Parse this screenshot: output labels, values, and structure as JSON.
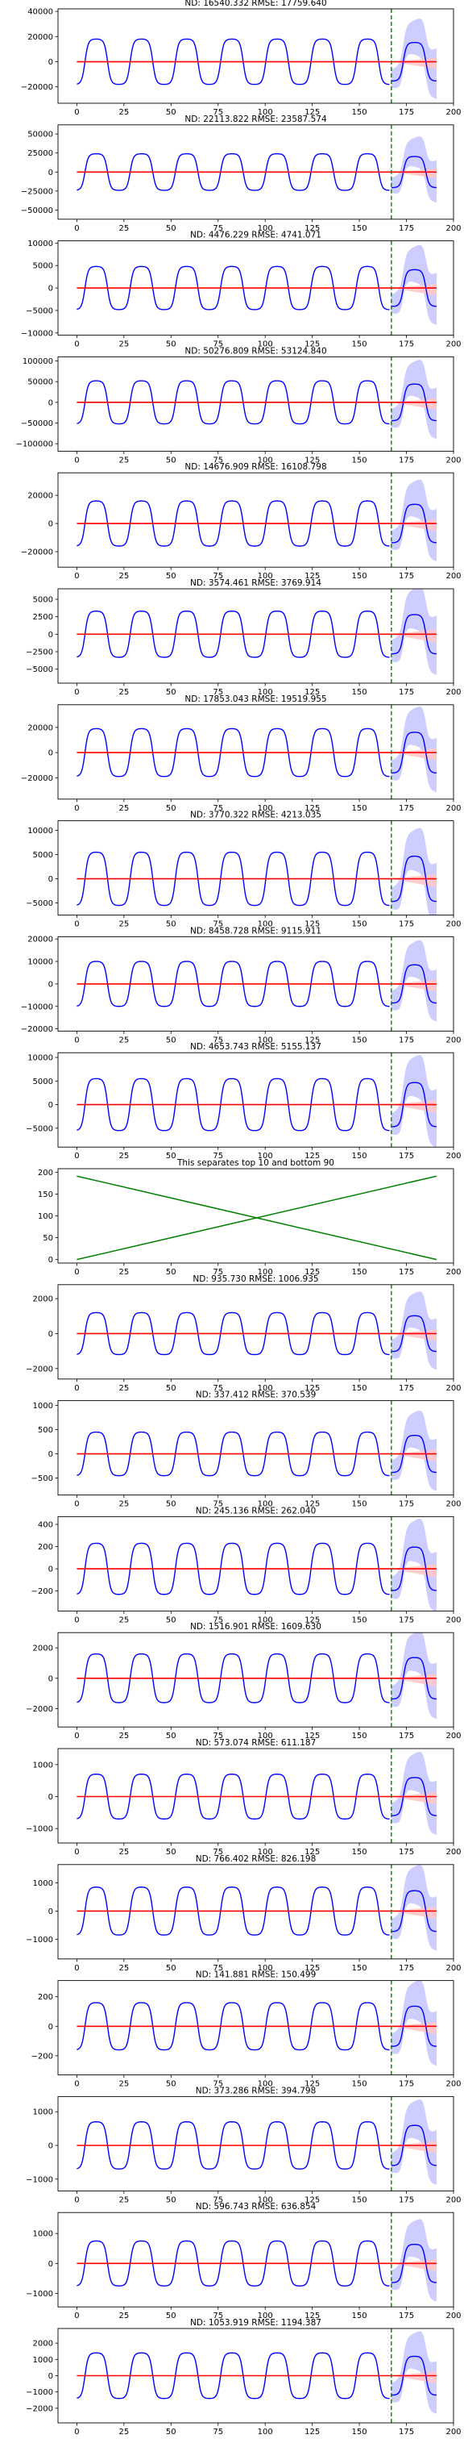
{
  "figure": {
    "colors": {
      "blue_line": "#0000ff",
      "blue_band": "#c8c8ff",
      "red_line": "#ff0000",
      "red_band": "#ffc8c8",
      "green_line": "#008000",
      "axes": "#000000"
    }
  },
  "chart_data": [
    {
      "type": "line",
      "title": "ND:  16540.332 RMSE:  17759.640",
      "y_ticks": [
        -20000,
        0,
        20000,
        40000
      ],
      "ylim": [
        -33000,
        42000
      ],
      "xlim": [
        -10,
        200
      ],
      "x_ticks": [
        0,
        25,
        50,
        75,
        100,
        125,
        150,
        175,
        200
      ],
      "amplitude": 18000,
      "forecast_band": 26000,
      "separator_x": 167
    },
    {
      "type": "line",
      "title": "ND:  22113.822 RMSE:  23587.574",
      "y_ticks": [
        -50000,
        -25000,
        0,
        25000,
        50000
      ],
      "ylim": [
        -62000,
        62000
      ],
      "xlim": [
        -10,
        200
      ],
      "x_ticks": [
        0,
        25,
        50,
        75,
        100,
        125,
        150,
        175,
        200
      ],
      "amplitude": 24000,
      "forecast_band": 36000,
      "separator_x": 167
    },
    {
      "type": "line",
      "title": "ND:  4476.229 RMSE:  4741.071",
      "y_ticks": [
        -10000,
        -5000,
        0,
        5000,
        10000
      ],
      "ylim": [
        -10500,
        10500
      ],
      "xlim": [
        -10,
        200
      ],
      "x_ticks": [
        0,
        25,
        50,
        75,
        100,
        125,
        150,
        175,
        200
      ],
      "amplitude": 4800,
      "forecast_band": 7500,
      "separator_x": 167
    },
    {
      "type": "line",
      "title": "ND:  50276.809 RMSE:  53124.840",
      "y_ticks": [
        -100000,
        -50000,
        0,
        50000,
        100000
      ],
      "ylim": [
        -118000,
        110000
      ],
      "xlim": [
        -10,
        200
      ],
      "x_ticks": [
        0,
        25,
        50,
        75,
        100,
        125,
        150,
        175,
        200
      ],
      "amplitude": 52000,
      "forecast_band": 80000,
      "separator_x": 167
    },
    {
      "type": "line",
      "title": "ND:  14676.909 RMSE:  16108.798",
      "y_ticks": [
        -20000,
        0,
        20000
      ],
      "ylim": [
        -31000,
        36000
      ],
      "xlim": [
        -10,
        200
      ],
      "x_ticks": [
        0,
        25,
        50,
        75,
        100,
        125,
        150,
        175,
        200
      ],
      "amplitude": 16000,
      "forecast_band": 24000,
      "separator_x": 167
    },
    {
      "type": "line",
      "title": "ND:  3574.461 RMSE:  3769.914",
      "y_ticks": [
        -5000,
        -2500,
        0,
        2500,
        5000
      ],
      "ylim": [
        -7000,
        6500
      ],
      "xlim": [
        -10,
        200
      ],
      "x_ticks": [
        0,
        25,
        50,
        75,
        100,
        125,
        150,
        175,
        200
      ],
      "amplitude": 3300,
      "forecast_band": 5500,
      "separator_x": 167
    },
    {
      "type": "line",
      "title": "ND:  17853.043 RMSE:  19519.955",
      "y_ticks": [
        -20000,
        0,
        20000
      ],
      "ylim": [
        -37000,
        38000
      ],
      "xlim": [
        -10,
        200
      ],
      "x_ticks": [
        0,
        25,
        50,
        75,
        100,
        125,
        150,
        175,
        200
      ],
      "amplitude": 19000,
      "forecast_band": 28000,
      "separator_x": 167
    },
    {
      "type": "line",
      "title": "ND:  3770.322 RMSE:  4213.035",
      "y_ticks": [
        -5000,
        0,
        5000,
        10000
      ],
      "ylim": [
        -7500,
        12000
      ],
      "xlim": [
        -10,
        200
      ],
      "x_ticks": [
        0,
        25,
        50,
        75,
        100,
        125,
        150,
        175,
        200
      ],
      "amplitude": 5500,
      "forecast_band": 8000,
      "separator_x": 167
    },
    {
      "type": "line",
      "title": "ND:  8458.728 RMSE:  9115.911",
      "y_ticks": [
        -20000,
        -10000,
        0,
        10000,
        20000
      ],
      "ylim": [
        -21000,
        21000
      ],
      "xlim": [
        -10,
        200
      ],
      "x_ticks": [
        0,
        25,
        50,
        75,
        100,
        125,
        150,
        175,
        200
      ],
      "amplitude": 10000,
      "forecast_band": 15000,
      "separator_x": 167
    },
    {
      "type": "line",
      "title": "ND:  4653.743 RMSE:  5155.137",
      "y_ticks": [
        -5000,
        0,
        5000,
        10000
      ],
      "ylim": [
        -9000,
        11000
      ],
      "xlim": [
        -10,
        200
      ],
      "x_ticks": [
        0,
        25,
        50,
        75,
        100,
        125,
        150,
        175,
        200
      ],
      "amplitude": 5500,
      "forecast_band": 8000,
      "separator_x": 167
    },
    {
      "type": "line",
      "kind": "separator",
      "title": "This separates top 10 and bottom 90",
      "y_ticks": [
        0,
        50,
        100,
        150,
        200
      ],
      "ylim": [
        -8,
        208
      ],
      "xlim": [
        -10,
        200
      ],
      "x_ticks": [
        0,
        25,
        50,
        75,
        100,
        125,
        150,
        175,
        200
      ],
      "series": [
        {
          "x": [
            0,
            191
          ],
          "y": [
            191,
            0
          ]
        },
        {
          "x": [
            0,
            191
          ],
          "y": [
            0,
            191
          ]
        }
      ]
    },
    {
      "type": "line",
      "title": "ND:  935.730 RMSE:  1006.935",
      "y_ticks": [
        -2000,
        0,
        2000
      ],
      "ylim": [
        -2600,
        2800
      ],
      "xlim": [
        -10,
        200
      ],
      "x_ticks": [
        0,
        25,
        50,
        75,
        100,
        125,
        150,
        175,
        200
      ],
      "amplitude": 1200,
      "forecast_band": 1900,
      "separator_x": 167
    },
    {
      "type": "line",
      "title": "ND:  337.412 RMSE:  370.539",
      "y_ticks": [
        -500,
        0,
        500,
        1000
      ],
      "ylim": [
        -850,
        1100
      ],
      "xlim": [
        -10,
        200
      ],
      "x_ticks": [
        0,
        25,
        50,
        75,
        100,
        125,
        150,
        175,
        200
      ],
      "amplitude": 450,
      "forecast_band": 700,
      "separator_x": 167
    },
    {
      "type": "line",
      "title": "ND:  245.136 RMSE:  262.040",
      "y_ticks": [
        -200,
        0,
        200,
        400
      ],
      "ylim": [
        -380,
        470
      ],
      "xlim": [
        -10,
        200
      ],
      "x_ticks": [
        0,
        25,
        50,
        75,
        100,
        125,
        150,
        175,
        200
      ],
      "amplitude": 230,
      "forecast_band": 350,
      "separator_x": 167
    },
    {
      "type": "line",
      "title": "ND:  1516.901 RMSE:  1609.630",
      "y_ticks": [
        -2000,
        0,
        2000
      ],
      "ylim": [
        -3200,
        3000
      ],
      "xlim": [
        -10,
        200
      ],
      "x_ticks": [
        0,
        25,
        50,
        75,
        100,
        125,
        150,
        175,
        200
      ],
      "amplitude": 1600,
      "forecast_band": 2400,
      "separator_x": 167
    },
    {
      "type": "line",
      "title": "ND:  573.074 RMSE:  611.187",
      "y_ticks": [
        -1000,
        0,
        1000
      ],
      "ylim": [
        -1450,
        1500
      ],
      "xlim": [
        -10,
        200
      ],
      "x_ticks": [
        0,
        25,
        50,
        75,
        100,
        125,
        150,
        175,
        200
      ],
      "amplitude": 700,
      "forecast_band": 1100,
      "separator_x": 167
    },
    {
      "type": "line",
      "title": "ND:  766.402 RMSE:  826.198",
      "y_ticks": [
        -1000,
        0,
        1000
      ],
      "ylim": [
        -1700,
        1650
      ],
      "xlim": [
        -10,
        200
      ],
      "x_ticks": [
        0,
        25,
        50,
        75,
        100,
        125,
        150,
        175,
        200
      ],
      "amplitude": 850,
      "forecast_band": 1250,
      "separator_x": 167
    },
    {
      "type": "line",
      "title": "ND:  141.881 RMSE:  150.499",
      "y_ticks": [
        -200,
        0,
        200
      ],
      "ylim": [
        -330,
        310
      ],
      "xlim": [
        -10,
        200
      ],
      "x_ticks": [
        0,
        25,
        50,
        75,
        100,
        125,
        150,
        175,
        200
      ],
      "amplitude": 160,
      "forecast_band": 240,
      "separator_x": 167
    },
    {
      "type": "line",
      "title": "ND:  373.286 RMSE:  394.798",
      "y_ticks": [
        -1000,
        0,
        1000
      ],
      "ylim": [
        -1350,
        1450
      ],
      "xlim": [
        -10,
        200
      ],
      "x_ticks": [
        0,
        25,
        50,
        75,
        100,
        125,
        150,
        175,
        200
      ],
      "amplitude": 700,
      "forecast_band": 1050,
      "separator_x": 167
    },
    {
      "type": "line",
      "title": "ND:  596.743 RMSE:  636.854",
      "y_ticks": [
        -1000,
        0,
        1000
      ],
      "ylim": [
        -1450,
        1700
      ],
      "xlim": [
        -10,
        200
      ],
      "x_ticks": [
        0,
        25,
        50,
        75,
        100,
        125,
        150,
        175,
        200
      ],
      "amplitude": 750,
      "forecast_band": 1150,
      "separator_x": 167
    },
    {
      "type": "line",
      "title": "ND:  1053.919 RMSE:  1194.387",
      "y_ticks": [
        -2000,
        -1000,
        0,
        1000,
        2000
      ],
      "ylim": [
        -2900,
        2900
      ],
      "xlim": [
        -10,
        200
      ],
      "x_ticks": [
        0,
        25,
        50,
        75,
        100,
        125,
        150,
        175,
        200
      ],
      "amplitude": 1400,
      "forecast_band": 2100,
      "separator_x": 167
    }
  ]
}
